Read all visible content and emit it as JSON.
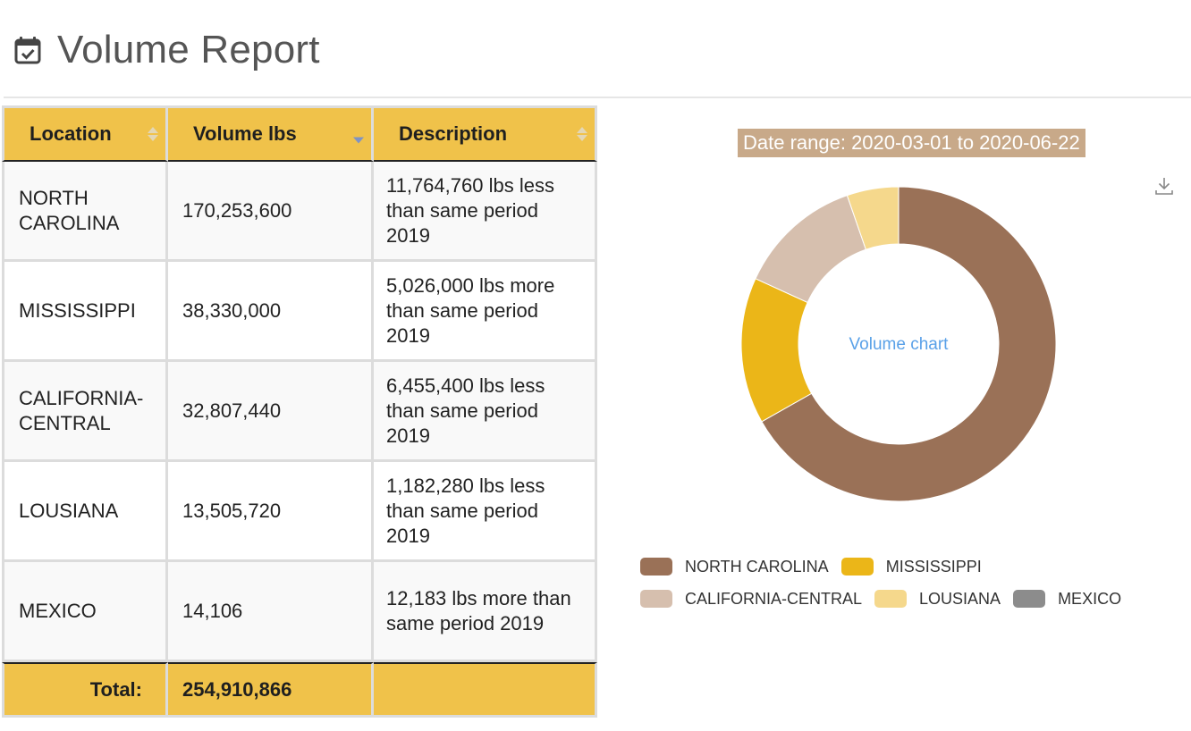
{
  "header": {
    "icon": "calendar-check-icon",
    "title": "Volume Report"
  },
  "table": {
    "columns": [
      {
        "label": "Location",
        "sort": "none"
      },
      {
        "label": "Volume lbs",
        "sort": "descending"
      },
      {
        "label": "Description",
        "sort": "none"
      }
    ],
    "rows": [
      {
        "location": "NORTH CAROLINA",
        "volume": "170,253,600",
        "description": "11,764,760 lbs less than same period 2019"
      },
      {
        "location": "MISSISSIPPI",
        "volume": "38,330,000",
        "description": "5,026,000 lbs more than same period 2019"
      },
      {
        "location": "CALIFORNIA-CENTRAL",
        "volume": "32,807,440",
        "description": "6,455,400 lbs less than same period 2019"
      },
      {
        "location": "LOUSIANA",
        "volume": "13,505,720",
        "description": "1,182,280 lbs less than same period 2019"
      },
      {
        "location": "MEXICO",
        "volume": "14,106",
        "description": "12,183 lbs more than same period 2019"
      }
    ],
    "footer": {
      "label": "Total:",
      "value": "254,910,866",
      "description": ""
    }
  },
  "chart": {
    "date_range": "Date range: 2020-03-01 to 2020-06-22",
    "center_label": "Volume chart",
    "download_icon": "download-icon"
  },
  "chart_data": {
    "type": "pie",
    "title": "Volume chart",
    "subtitle": "Date range: 2020-03-01 to 2020-06-22",
    "legend_position": "bottom",
    "series": [
      {
        "name": "NORTH CAROLINA",
        "value": 170253600,
        "color": "#9a7157"
      },
      {
        "name": "MISSISSIPPI",
        "value": 38330000,
        "color": "#ebb618"
      },
      {
        "name": "CALIFORNIA-CENTRAL",
        "value": 32807440,
        "color": "#d6bfae"
      },
      {
        "name": "LOUSIANA",
        "value": 13505720,
        "color": "#f5d88c"
      },
      {
        "name": "MEXICO",
        "value": 14106,
        "color": "#8c8c8c"
      }
    ]
  }
}
